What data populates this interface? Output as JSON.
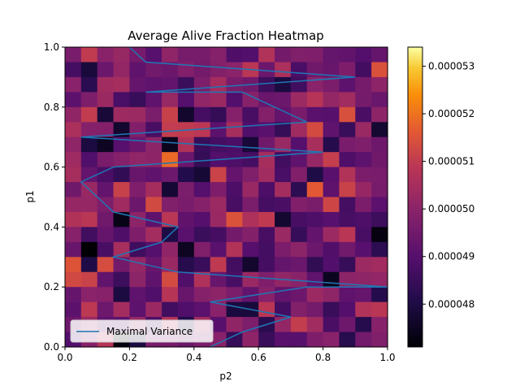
{
  "chart_data": {
    "type": "heatmap",
    "title": "Average Alive Fraction Heatmap",
    "xlabel": "p2",
    "ylabel": "p1",
    "xlim": [
      0.0,
      1.0
    ],
    "ylim": [
      0.0,
      1.0
    ],
    "x_ticks": [
      "0.0",
      "0.2",
      "0.4",
      "0.6",
      "0.8",
      "1.0"
    ],
    "y_ticks": [
      "0.0",
      "0.2",
      "0.4",
      "0.6",
      "0.8",
      "1.0"
    ],
    "grid_size": [
      20,
      20
    ],
    "colorbar": {
      "min": 4.71e-05,
      "max": 5.34e-05,
      "ticks": [
        "0.000048",
        "0.000049",
        "0.000050",
        "0.000051",
        "0.000052",
        "0.000053"
      ],
      "tick_values": [
        4.8e-05,
        4.9e-05,
        5e-05,
        5.1e-05,
        5.2e-05,
        5.3e-05
      ]
    },
    "legend": {
      "placement": "lower-left",
      "entries": [
        {
          "name": "Maximal Variance",
          "color": "#1f77b4"
        }
      ]
    },
    "series": [
      {
        "name": "Maximal Variance",
        "type": "line",
        "color": "#1f77b4",
        "points": [
          [
            0.45,
            0.0
          ],
          [
            0.55,
            0.05
          ],
          [
            0.7,
            0.1
          ],
          [
            0.45,
            0.15
          ],
          [
            0.75,
            0.2
          ],
          [
            1.0,
            0.2
          ],
          [
            0.35,
            0.25
          ],
          [
            0.15,
            0.3
          ],
          [
            0.3,
            0.35
          ],
          [
            0.35,
            0.4
          ],
          [
            0.15,
            0.45
          ],
          [
            0.05,
            0.55
          ],
          [
            0.15,
            0.6
          ],
          [
            0.8,
            0.65
          ],
          [
            0.05,
            0.7
          ],
          [
            0.75,
            0.75
          ],
          [
            0.55,
            0.85
          ],
          [
            0.25,
            0.85
          ],
          [
            0.9,
            0.9
          ],
          [
            0.25,
            0.95
          ],
          [
            0.2,
            1.0
          ]
        ]
      }
    ]
  }
}
